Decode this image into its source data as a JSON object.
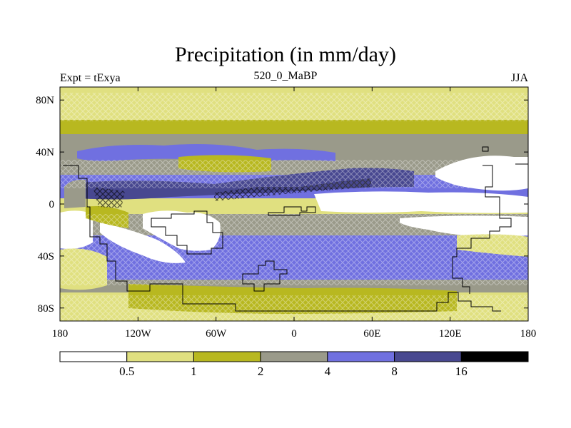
{
  "title": "Precipitation (in mm/day)",
  "left_label": "Expt = tExya",
  "center_label": "520_0_MaBP",
  "right_label": "JJA",
  "map": {
    "lon_range": [
      -180,
      180
    ],
    "lat_range": [
      -90,
      90
    ],
    "lat_ticks": [
      {
        "value": 80,
        "label": "80N"
      },
      {
        "value": 40,
        "label": "40N"
      },
      {
        "value": 0,
        "label": "0"
      },
      {
        "value": -40,
        "label": "40S"
      },
      {
        "value": -80,
        "label": "80S"
      }
    ],
    "lon_ticks": [
      {
        "value": -180,
        "label": "180"
      },
      {
        "value": -120,
        "label": "120W"
      },
      {
        "value": -60,
        "label": "60W"
      },
      {
        "value": 0,
        "label": "0"
      },
      {
        "value": 60,
        "label": "60E"
      },
      {
        "value": 120,
        "label": "120E"
      },
      {
        "value": 180,
        "label": "180"
      }
    ]
  },
  "colorbar": {
    "levels": [
      "0.5",
      "1",
      "2",
      "4",
      "8",
      "16"
    ],
    "colors": [
      "#ffffff",
      "#e0e080",
      "#b8b820",
      "#9a9a8a",
      "#7070e0",
      "#484890",
      "#000000"
    ]
  }
}
